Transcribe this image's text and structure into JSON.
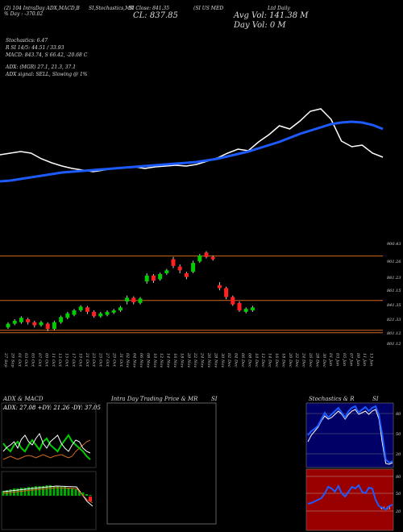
{
  "header": {
    "top_left": "(2) 104 IntraDay ADX,MACD,B",
    "top_left_2": "% Day : -370.02",
    "header_mid_1": "SI,Stochastics,MR",
    "header_mid_2": "SI Close: 841.35",
    "header_right": "(SI US MED",
    "close_label": "CL: 837.85",
    "avg_vol": "Avg Vol: 141.38  M",
    "day_vol": "Day Vol: 0   M",
    "right_tail": "Ltd  Daily"
  },
  "indicators": {
    "stochastics": "Stochastics: 6.47",
    "stoch_values": "R     SI 14/5: 44.51 / 33.93",
    "macd": "MACD: 843.74, S        66.42, -20.68  C",
    "adx": "ADX:                       (MGR) 27.1, 21.3, 37.1",
    "adx_signal": "ADX  signal: SELL, Slowing @ 1%"
  },
  "panels": {
    "adx_title": "ADX  & MACD",
    "adx_values": "ADX: 27.08  +DY: 21.26  -DY: 37.05",
    "intraday_title": "Intra  Day Trading Price  & MR",
    "intraday_si": "SI",
    "stoch_title": "Stochastics & R",
    "stoch_si": "SI",
    "stoch_levels": [
      "80",
      "50",
      "20"
    ],
    "rsi_levels": [
      "80",
      "50",
      "20"
    ],
    "rsi_value": "44.51"
  },
  "colors": {
    "up": "#00cc00",
    "down": "#ff2020",
    "ema": "#1e5bff",
    "price": "#ffffff",
    "hline": "#d2691e",
    "stoch_bg": "#000066",
    "rsi_bg": "#990000"
  },
  "chart_data": {
    "type": "candlestick",
    "price_axis": [
      "900.43",
      "901.26",
      "881.23",
      "861.15",
      "841.35",
      "821.33",
      "801.12",
      "801.12"
    ],
    "horizontal_levels": [
      901.26,
      841.35,
      801.12
    ],
    "ylim": [
      790,
      915
    ],
    "dates": [
      "27 Sep",
      "29 Sep",
      "01 Oct",
      "03 Oct",
      "05 Oct",
      "07 Oct",
      "09 Oct",
      "11 Oct",
      "13 Oct",
      "15 Oct",
      "17 Oct",
      "19 Oct",
      "21 Oct",
      "23 Oct",
      "25 Oct",
      "27 Oct",
      "29 Oct",
      "31 Oct",
      "02 Nov",
      "04 Nov",
      "06 Nov",
      "08 Nov",
      "10 Nov",
      "12 Nov",
      "14 Nov",
      "16 Nov",
      "18 Nov",
      "20 Nov",
      "22 Nov",
      "24 Nov",
      "26 Nov",
      "28 Nov",
      "30 Nov",
      "02 Dec",
      "04 Dec",
      "06 Dec",
      "08 Dec",
      "10 Dec",
      "12 Dec",
      "14 Dec",
      "16 Dec",
      "18 Dec",
      "20 Dec",
      "22 Dec",
      "24 Dec",
      "26 Dec",
      "28 Dec",
      "30 Dec",
      "01 Jan",
      "03 Jan",
      "05 Jan",
      "07 Jan",
      "09 Jan",
      "11 Jan",
      "13 Jan"
    ],
    "candles": [
      {
        "o": 805,
        "c": 810,
        "h": 812,
        "l": 803
      },
      {
        "o": 810,
        "c": 814,
        "h": 816,
        "l": 808
      },
      {
        "o": 812,
        "c": 818,
        "h": 820,
        "l": 810
      },
      {
        "o": 816,
        "c": 812,
        "h": 818,
        "l": 809
      },
      {
        "o": 812,
        "c": 808,
        "h": 814,
        "l": 805
      },
      {
        "o": 808,
        "c": 812,
        "h": 814,
        "l": 806
      },
      {
        "o": 810,
        "c": 803,
        "h": 812,
        "l": 800
      },
      {
        "o": 803,
        "c": 812,
        "h": 814,
        "l": 801
      },
      {
        "o": 812,
        "c": 819,
        "h": 821,
        "l": 810
      },
      {
        "o": 818,
        "c": 824,
        "h": 826,
        "l": 816
      },
      {
        "o": 822,
        "c": 828,
        "h": 830,
        "l": 820
      },
      {
        "o": 828,
        "c": 833,
        "h": 835,
        "l": 826
      },
      {
        "o": 832,
        "c": 826,
        "h": 834,
        "l": 823
      },
      {
        "o": 826,
        "c": 820,
        "h": 828,
        "l": 818
      },
      {
        "o": 820,
        "c": 824,
        "h": 826,
        "l": 818
      },
      {
        "o": 822,
        "c": 826,
        "h": 828,
        "l": 820
      },
      {
        "o": 825,
        "c": 828,
        "h": 830,
        "l": 823
      },
      {
        "o": 828,
        "c": 832,
        "h": 834,
        "l": 826
      },
      {
        "o": 840,
        "c": 845,
        "h": 848,
        "l": 836
      },
      {
        "o": 845,
        "c": 839,
        "h": 847,
        "l": 836
      },
      {
        "o": 838,
        "c": 844,
        "h": 846,
        "l": 836
      },
      {
        "o": 867,
        "c": 875,
        "h": 878,
        "l": 864
      },
      {
        "o": 875,
        "c": 868,
        "h": 877,
        "l": 865
      },
      {
        "o": 870,
        "c": 877,
        "h": 879,
        "l": 868
      },
      {
        "o": 878,
        "c": 882,
        "h": 884,
        "l": 876
      },
      {
        "o": 897,
        "c": 888,
        "h": 900,
        "l": 885
      },
      {
        "o": 887,
        "c": 882,
        "h": 890,
        "l": 878
      },
      {
        "o": 878,
        "c": 873,
        "h": 880,
        "l": 870
      },
      {
        "o": 880,
        "c": 892,
        "h": 895,
        "l": 878
      },
      {
        "o": 894,
        "c": 902,
        "h": 904,
        "l": 892
      },
      {
        "o": 906,
        "c": 900,
        "h": 908,
        "l": 898
      },
      {
        "o": 900,
        "c": 897,
        "h": 902,
        "l": 895
      },
      {
        "o": 862,
        "c": 858,
        "h": 866,
        "l": 855
      },
      {
        "o": 858,
        "c": 846,
        "h": 860,
        "l": 843
      },
      {
        "o": 846,
        "c": 836,
        "h": 848,
        "l": 834
      },
      {
        "o": 838,
        "c": 828,
        "h": 840,
        "l": 826
      },
      {
        "o": 826,
        "c": 830,
        "h": 832,
        "l": 824
      },
      {
        "o": 828,
        "c": 832,
        "h": 834,
        "l": 826
      }
    ],
    "line_price": [
      192,
      190,
      188,
      190,
      197,
      202,
      206,
      209,
      211,
      213,
      211,
      209,
      208,
      207,
      209,
      207,
      206,
      205,
      206,
      204,
      200,
      196,
      190,
      185,
      187,
      176,
      167,
      156,
      160,
      150,
      138,
      135,
      148,
      175,
      182,
      180,
      190,
      195
    ],
    "line_ema": [
      225,
      224,
      222,
      220,
      218,
      216,
      214,
      213,
      212,
      211,
      210,
      209,
      208,
      207,
      206,
      205,
      204,
      203,
      202,
      201,
      199,
      197,
      194,
      191,
      188,
      184,
      180,
      176,
      171,
      166,
      162,
      158,
      154,
      152,
      151,
      152,
      155,
      160
    ]
  }
}
